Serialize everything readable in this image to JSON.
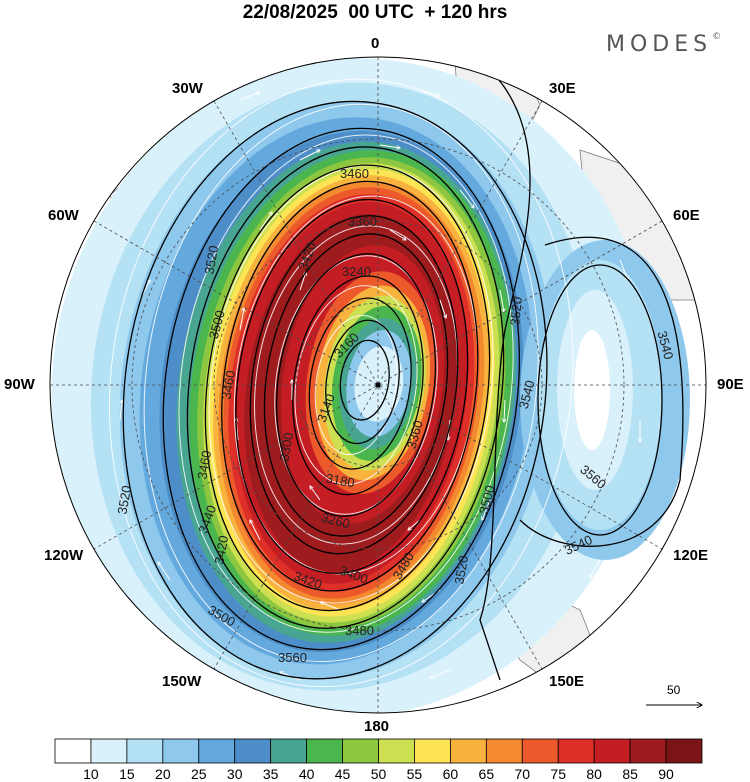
{
  "header": {
    "title": "22/08/2025  00 UTC  + 120 hrs",
    "brand": "MODES",
    "brand_mark": "©"
  },
  "map": {
    "projection": "south-polar-stereographic",
    "longitude_labels": {
      "top": "0",
      "top_left": "30W",
      "top_right": "30E",
      "upper_left": "60W",
      "upper_right": "60E",
      "left": "90W",
      "right": "90E",
      "lower_left": "120W",
      "lower_right": "120E",
      "bottom_left": "150W",
      "bottom_right": "150E",
      "bottom": "180"
    },
    "contour_labels": [
      "3460",
      "3360",
      "3420",
      "3240",
      "3520",
      "3500",
      "3160",
      "3140",
      "3460",
      "3300",
      "3520",
      "3560",
      "3540",
      "3540",
      "3180",
      "3260",
      "3400",
      "3420",
      "3480",
      "3520",
      "3540",
      "3520",
      "3460",
      "3500",
      "3440",
      "3480",
      "3560",
      "3500",
      "3420",
      "3360"
    ],
    "wind_reference_value": "50"
  },
  "colorbar": {
    "tick_labels": [
      "10",
      "15",
      "20",
      "25",
      "30",
      "35",
      "40",
      "45",
      "50",
      "55",
      "60",
      "65",
      "70",
      "75",
      "80",
      "85",
      "90"
    ],
    "colors": [
      "#ffffff",
      "#d9f1fb",
      "#b5e1f5",
      "#8ec8ec",
      "#64a9de",
      "#4d8ec8",
      "#47a591",
      "#4cb64e",
      "#8dc63f",
      "#cde052",
      "#fde454",
      "#f8b33f",
      "#f48a2f",
      "#ec5a2c",
      "#de2f28",
      "#c41d24",
      "#9e1b1e",
      "#7a1417"
    ]
  },
  "style": {
    "land": "#f0f0f0",
    "coast": "#7a7a7a",
    "contour": "#000000",
    "grid": "#4a4a4a"
  }
}
